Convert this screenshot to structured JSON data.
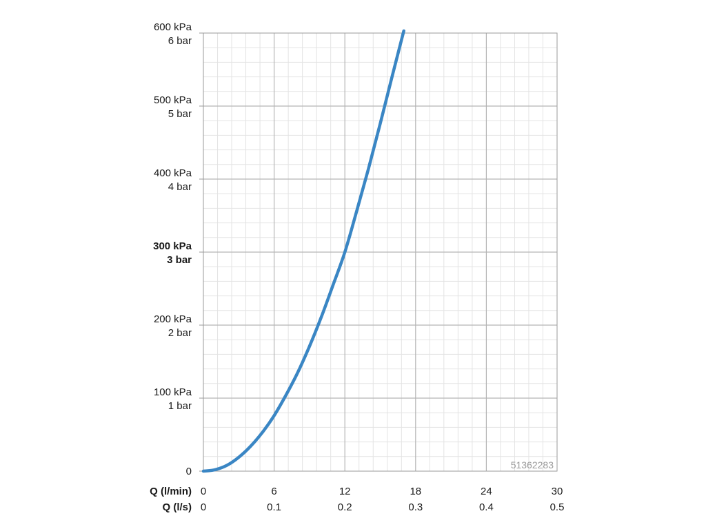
{
  "chart_data": {
    "type": "line",
    "x_axes": [
      {
        "label": "Q (l/min)",
        "ticks": [
          "0",
          "6",
          "12",
          "18",
          "24",
          "30"
        ],
        "range": [
          0,
          30
        ]
      },
      {
        "label": "Q (l/s)",
        "ticks": [
          "0",
          "0.1",
          "0.2",
          "0.3",
          "0.4",
          "0.5"
        ],
        "range": [
          0,
          0.5
        ]
      }
    ],
    "y_axis": {
      "range": [
        0,
        600
      ],
      "ticks": [
        {
          "value": 0,
          "kpa": "0",
          "bar": "",
          "bold": false
        },
        {
          "value": 100,
          "kpa": "100 kPa",
          "bar": "1 bar",
          "bold": false
        },
        {
          "value": 200,
          "kpa": "200 kPa",
          "bar": "2 bar",
          "bold": false
        },
        {
          "value": 300,
          "kpa": "300 kPa",
          "bar": "3 bar",
          "bold": true
        },
        {
          "value": 400,
          "kpa": "400 kPa",
          "bar": "4 bar",
          "bold": false
        },
        {
          "value": 500,
          "kpa": "500 kPa",
          "bar": "5 bar",
          "bold": false
        },
        {
          "value": 600,
          "kpa": "600 kPa",
          "bar": "6 bar",
          "bold": false
        }
      ]
    },
    "grid": {
      "major": true,
      "minor": true,
      "minor_per_major": 5
    },
    "series": [
      {
        "color": "#3a86c4",
        "x": [
          0,
          1,
          2,
          3,
          4,
          5,
          6,
          7,
          8,
          9,
          10,
          11,
          12,
          13,
          14,
          15,
          16,
          17
        ],
        "y": [
          0,
          2,
          8,
          19,
          34,
          53,
          76,
          104,
          135,
          171,
          211,
          255,
          300,
          356,
          414,
          476,
          540,
          603
        ]
      }
    ],
    "watermark": "51362283"
  }
}
